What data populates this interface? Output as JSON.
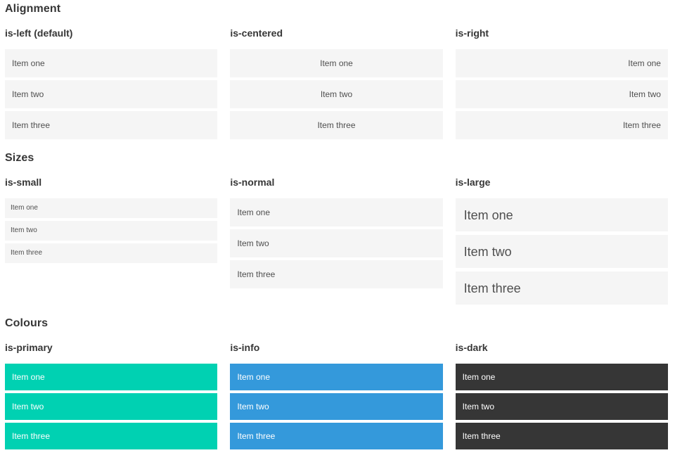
{
  "colors": {
    "primary": "#00d1b2",
    "info": "#3499db",
    "dark": "#363636",
    "item-bg": "#f5f5f5",
    "item-text": "#4f4f4f",
    "colored-item-text": "#ffffff",
    "heading": "#363636"
  },
  "sections": [
    {
      "title": "Alignment",
      "columns": [
        {
          "label": "is-left (default)",
          "items": [
            "Item one",
            "Item two",
            "Item three"
          ]
        },
        {
          "label": "is-centered",
          "items": [
            "Item one",
            "Item two",
            "Item three"
          ]
        },
        {
          "label": "is-right",
          "items": [
            "Item one",
            "Item two",
            "Item three"
          ]
        }
      ]
    },
    {
      "title": "Sizes",
      "columns": [
        {
          "label": "is-small",
          "items": [
            "Item one",
            "Item two",
            "Item three"
          ]
        },
        {
          "label": "is-normal",
          "items": [
            "Item one",
            "Item two",
            "Item three"
          ]
        },
        {
          "label": "is-large",
          "items": [
            "Item one",
            "Item two",
            "Item three"
          ]
        }
      ]
    },
    {
      "title": "Colours",
      "columns": [
        {
          "label": "is-primary",
          "items": [
            "Item one",
            "Item two",
            "Item three"
          ]
        },
        {
          "label": "is-info",
          "items": [
            "Item one",
            "Item two",
            "Item three"
          ]
        },
        {
          "label": "is-dark",
          "items": [
            "Item one",
            "Item two",
            "Item three"
          ]
        }
      ]
    }
  ]
}
